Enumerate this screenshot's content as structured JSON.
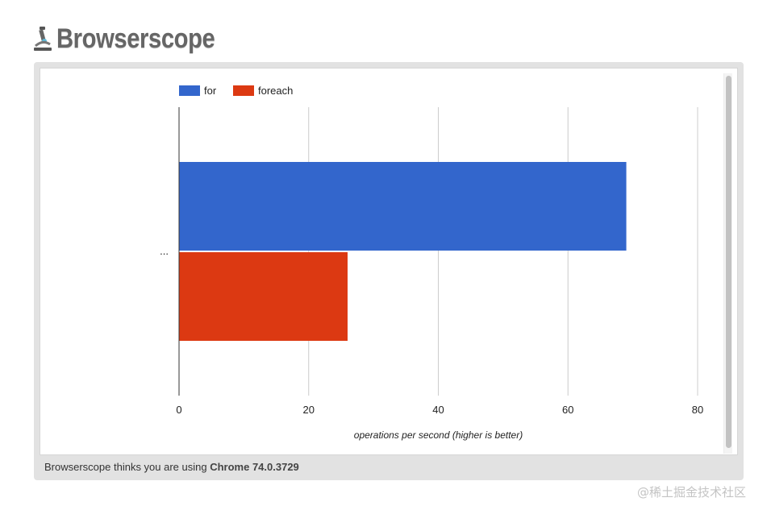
{
  "header": {
    "title": "Browserscope"
  },
  "footer": {
    "prefix": "Browserscope thinks you are using ",
    "browser": "Chrome 74.0.3729"
  },
  "watermark": "@稀土掘金技术社区",
  "colors": {
    "for": "#3366cc",
    "foreach": "#dc3912",
    "grid": "#cccccc",
    "axis": "#333333"
  },
  "chart_data": {
    "type": "bar",
    "orientation": "horizontal",
    "categories": [
      "..."
    ],
    "series": [
      {
        "name": "for",
        "values": [
          69
        ]
      },
      {
        "name": "foreach",
        "values": [
          26
        ]
      }
    ],
    "xlabel": "operations per second (higher is better)",
    "ylabel": "",
    "xlim": [
      0,
      80
    ],
    "xticks": [
      0,
      20,
      40,
      60,
      80
    ],
    "grid": true,
    "legend": "top-left"
  }
}
